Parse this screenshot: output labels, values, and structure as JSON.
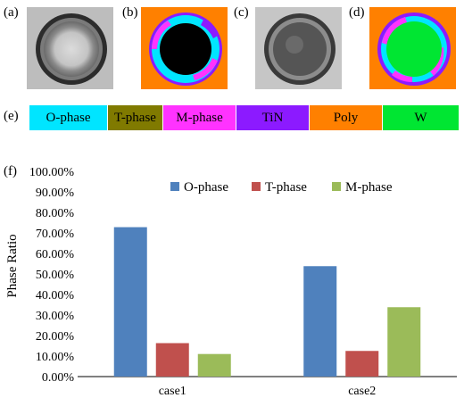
{
  "panels": {
    "a": "(a)",
    "b": "(b)",
    "c": "(c)",
    "d": "(d)",
    "e": "(e)",
    "f": "(f)"
  },
  "phase_legend": [
    {
      "label": "O-phase",
      "color": "#00e5ff"
    },
    {
      "label": "T-phase",
      "color": "#807a00"
    },
    {
      "label": "M-phase",
      "color": "#ff33ff"
    },
    {
      "label": "TiN",
      "color": "#8c1aff"
    },
    {
      "label": "Poly",
      "color": "#ff8000"
    },
    {
      "label": "W",
      "color": "#00e632"
    }
  ],
  "chart_data": {
    "type": "bar",
    "categories": [
      "case1",
      "case2"
    ],
    "series": [
      {
        "name": "O-phase",
        "values": [
          72.8,
          53.8
        ],
        "color": "#4f81bd"
      },
      {
        "name": "T-phase",
        "values": [
          16.3,
          12.5
        ],
        "color": "#c0504d"
      },
      {
        "name": "M-phase",
        "values": [
          11.0,
          33.8
        ],
        "color": "#9bbb59"
      }
    ],
    "ylabel": "Phase Ratio",
    "ylim": [
      0,
      100
    ],
    "yticks": [
      "0.00%",
      "10.00%",
      "20.00%",
      "30.00%",
      "40.00%",
      "50.00%",
      "60.00%",
      "70.00%",
      "80.00%",
      "90.00%",
      "100.00%"
    ],
    "legend_position": "top-center",
    "grid": false
  }
}
